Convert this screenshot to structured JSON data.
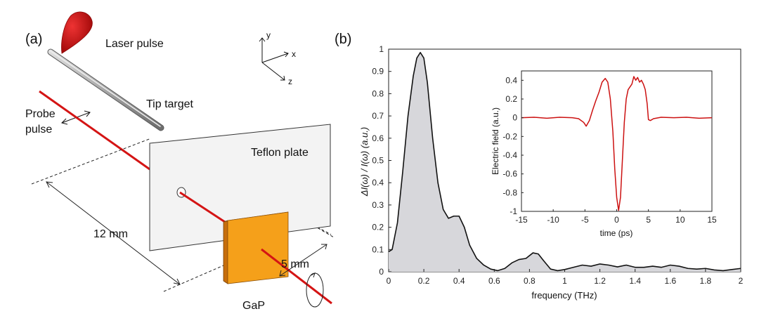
{
  "panel_a": {
    "label": "(a)",
    "laser_pulse": "Laser pulse",
    "tip_target": "Tip target",
    "probe_line1": "Probe",
    "probe_line2": "pulse",
    "teflon_plate": "Teflon plate",
    "dist_12": "12 mm",
    "dist_5": "5 mm",
    "gap": "GaP",
    "axis_x": "x",
    "axis_y": "y",
    "axis_z": "z",
    "colors": {
      "laser": "#cc1111",
      "crystal": "#f5a01a",
      "crystal_side": "#c76e0c",
      "plate": "#f2f2f2"
    }
  },
  "panel_b": {
    "label": "(b)",
    "ylabel": "ΔI(ω) / I(ω)  (a.u.)",
    "xlabel": "frequency (THz)"
  },
  "chart_data": [
    {
      "type": "area",
      "xlabel": "frequency (THz)",
      "ylabel": "ΔI(ω) / I(ω)  (a.u.)",
      "xlim": [
        0,
        2
      ],
      "ylim": [
        0,
        1
      ],
      "xticks": [
        "0",
        "0.2",
        "0.4",
        "0.6",
        "0.8",
        "1",
        "1.2",
        "1.4",
        "1.6",
        "1.8",
        "2"
      ],
      "yticks": [
        "0",
        "0.1",
        "0.2",
        "0.3",
        "0.4",
        "0.5",
        "0.6",
        "0.7",
        "0.8",
        "0.9",
        "1"
      ],
      "fill_color": "#d7d7db",
      "line_color": "#111111",
      "x": [
        0,
        0.02,
        0.05,
        0.08,
        0.11,
        0.14,
        0.16,
        0.18,
        0.2,
        0.22,
        0.25,
        0.28,
        0.31,
        0.34,
        0.37,
        0.4,
        0.43,
        0.46,
        0.5,
        0.54,
        0.58,
        0.62,
        0.66,
        0.7,
        0.74,
        0.78,
        0.82,
        0.85,
        0.88,
        0.92,
        0.96,
        1.0,
        1.05,
        1.1,
        1.15,
        1.2,
        1.25,
        1.3,
        1.35,
        1.4,
        1.45,
        1.5,
        1.55,
        1.6,
        1.65,
        1.7,
        1.75,
        1.8,
        1.85,
        1.9,
        1.95,
        2.0
      ],
      "y": [
        0.09,
        0.1,
        0.22,
        0.45,
        0.7,
        0.88,
        0.96,
        0.985,
        0.96,
        0.85,
        0.6,
        0.4,
        0.28,
        0.24,
        0.25,
        0.25,
        0.2,
        0.12,
        0.06,
        0.03,
        0.012,
        0.005,
        0.015,
        0.04,
        0.055,
        0.06,
        0.085,
        0.08,
        0.05,
        0.012,
        0.005,
        0.01,
        0.02,
        0.03,
        0.025,
        0.035,
        0.03,
        0.022,
        0.03,
        0.02,
        0.02,
        0.025,
        0.02,
        0.03,
        0.025,
        0.015,
        0.012,
        0.015,
        0.008,
        0.005,
        0.01,
        0.015
      ]
    },
    {
      "type": "line",
      "xlabel": "time (ps)",
      "ylabel": "Electric field (a.u.)",
      "xlim": [
        -15,
        15
      ],
      "ylim": [
        -1,
        0.5
      ],
      "xticks": [
        "-15",
        "-10",
        "-5",
        "0",
        "5",
        "10",
        "15"
      ],
      "yticks": [
        "-1",
        "-0.8",
        "-0.6",
        "-0.4",
        "-0.2",
        "0",
        "0.2",
        "0.4"
      ],
      "line_color": "#cc1111",
      "x": [
        -15,
        -13,
        -11,
        -9,
        -7,
        -6,
        -5.2,
        -4.8,
        -4.3,
        -3.8,
        -3.3,
        -2.8,
        -2.3,
        -1.8,
        -1.4,
        -1.0,
        -0.6,
        -0.3,
        0,
        0.3,
        0.6,
        0.9,
        1.2,
        1.5,
        1.8,
        2.1,
        2.4,
        2.7,
        3.0,
        3.3,
        3.6,
        3.9,
        4.2,
        4.5,
        4.8,
        5.0,
        5.3,
        5.8,
        7,
        9,
        11,
        13,
        15
      ],
      "y": [
        0,
        0.005,
        -0.005,
        0.005,
        0,
        -0.01,
        -0.05,
        -0.09,
        -0.03,
        0.08,
        0.18,
        0.27,
        0.38,
        0.42,
        0.38,
        0.2,
        -0.15,
        -0.55,
        -0.85,
        -0.99,
        -0.85,
        -0.45,
        -0.05,
        0.2,
        0.3,
        0.33,
        0.36,
        0.44,
        0.4,
        0.43,
        0.38,
        0.4,
        0.36,
        0.3,
        0.15,
        -0.02,
        -0.03,
        -0.01,
        0.005,
        0,
        0.005,
        -0.005,
        0
      ]
    }
  ]
}
